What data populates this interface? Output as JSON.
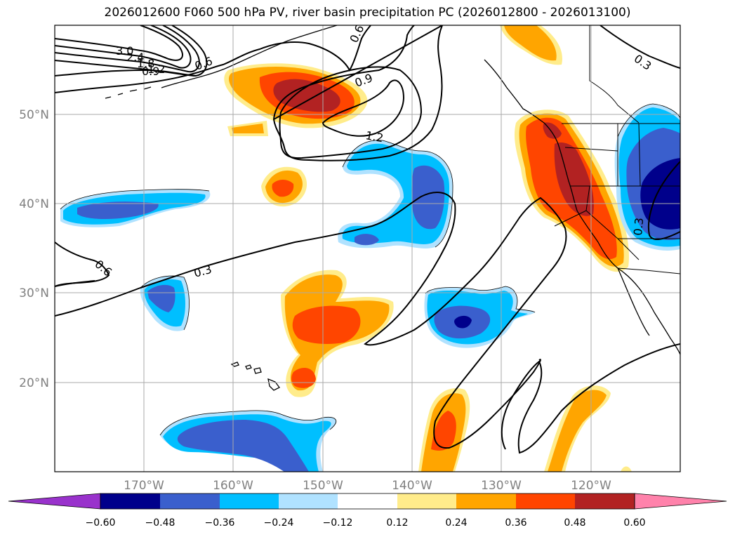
{
  "title": "2026012600 F060 500 hPa PV, river basin precipitation PC (2026012800 - 2026013100)",
  "map": {
    "lat_labels": [
      "50°N",
      "40°N",
      "30°N",
      "20°N"
    ],
    "lon_labels": [
      "170°W",
      "160°W",
      "150°W",
      "140°W",
      "130°W",
      "120°W"
    ],
    "contour_labels": [
      "3.0",
      "2.4",
      "1.8",
      "1.2",
      "0.9",
      "0.6",
      "0.6",
      "0.9",
      "1.2",
      "0.3",
      "0.6",
      "0.3",
      "0.3"
    ]
  },
  "colorbar": {
    "ticks": [
      "−0.60",
      "−0.48",
      "−0.36",
      "−0.24",
      "−0.12",
      "0.12",
      "0.24",
      "0.36",
      "0.48",
      "0.60"
    ],
    "colors": [
      "#9932cc",
      "#00008b",
      "#3a5fcd",
      "#00bfff",
      "#b0e2ff",
      "#ffffff",
      "#ffec8b",
      "#ffa500",
      "#ff4500",
      "#b22222",
      "#ff82ab"
    ]
  },
  "fill_colors": {
    "lightpos": "#ffec8b",
    "orange": "#ffa500",
    "orangered": "#ff4500",
    "firebrick": "#b22222",
    "lightblue": "#b0e2ff",
    "skyblue": "#00bfff",
    "royalblue": "#3a5fcd",
    "navy": "#00008b"
  }
}
